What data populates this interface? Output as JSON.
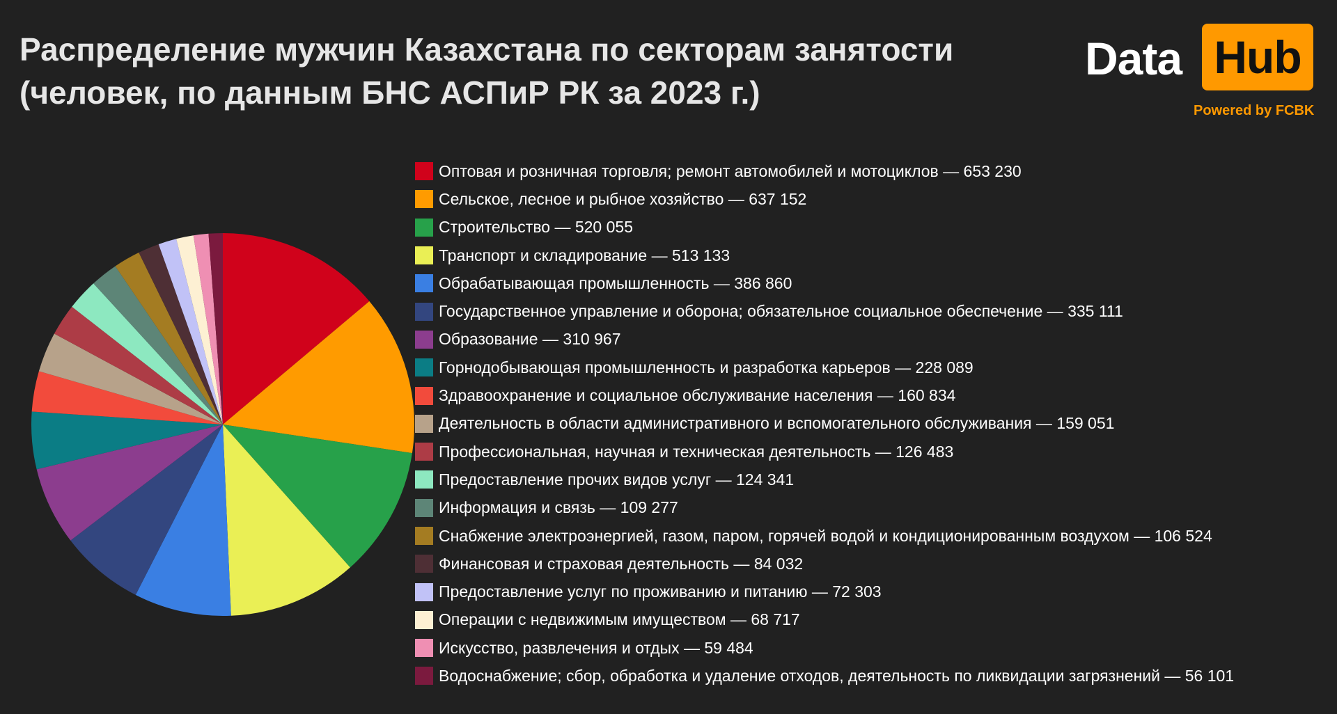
{
  "title": {
    "line1": "Распределение мужчин Казахстана по секторам занятости",
    "line2": "(человек, по данным БНС АСПиР РК за 2023 г.)"
  },
  "logo": {
    "word1": "Data",
    "word2": "Hub",
    "tagline": "Powered by FCBK",
    "accent": "#ff9900"
  },
  "chart_data": {
    "type": "pie",
    "title": "Распределение мужчин Казахстана по секторам занятости (человек, по данным БНС АСПиР РК за 2023 г.)",
    "legend_position": "right",
    "slices": [
      {
        "label": "Оптовая и розничная торговля; ремонт автомобилей и мотоциклов — 653 230",
        "value": 653230,
        "color": "#d0021b"
      },
      {
        "label": "Сельское, лесное и рыбное хозяйство — 637 152",
        "value": 637152,
        "color": "#ff9b00"
      },
      {
        "label": "Строительство — 520 055",
        "value": 520055,
        "color": "#27a14a"
      },
      {
        "label": "Транспорт и складирование — 513 133",
        "value": 513133,
        "color": "#eaef55"
      },
      {
        "label": "Обрабатывающая промышленность — 386 860",
        "value": 386860,
        "color": "#3a7fe3"
      },
      {
        "label": "Государственное управление и оборона; обязательное социальное обеспечение — 335 111",
        "value": 335111,
        "color": "#33467f"
      },
      {
        "label": "Образование — 310 967",
        "value": 310967,
        "color": "#8c3d8e"
      },
      {
        "label": "Горнодобывающая промышленность и разработка карьеров — 228 089",
        "value": 228089,
        "color": "#0b7d85"
      },
      {
        "label": "Здравоохранение и социальное обслуживание населения — 160 834",
        "value": 160834,
        "color": "#f24b3c"
      },
      {
        "label": "Деятельность в области административного и вспомогательного обслуживания — 159 051",
        "value": 159051,
        "color": "#b7a28a"
      },
      {
        "label": "Профессиональная, научная и техническая деятельность — 126 483",
        "value": 126483,
        "color": "#ad3c46"
      },
      {
        "label": "Предоставление прочих видов услуг — 124 341",
        "value": 124341,
        "color": "#8de8c0"
      },
      {
        "label": "Информация и связь — 109 277",
        "value": 109277,
        "color": "#5d8577"
      },
      {
        "label": "Снабжение электроэнергией, газом, паром, горячей водой и  кондиционированным воздухом — 106 524",
        "value": 106524,
        "color": "#a47c22"
      },
      {
        "label": "Финансовая и страховая деятельность — 84 032",
        "value": 84032,
        "color": "#4e2f35"
      },
      {
        "label": "Предоставление услуг по проживанию и питанию — 72 303",
        "value": 72303,
        "color": "#c1c2f7"
      },
      {
        "label": "Операции с недвижимым имуществом — 68 717",
        "value": 68717,
        "color": "#fdf0d3"
      },
      {
        "label": "Искусство, развлечения и отдых — 59 484",
        "value": 59484,
        "color": "#ef8fb3"
      },
      {
        "label": "Водоснабжение; сбор, обработка и удаление отходов, деятельность по ликвидации загрязнений — 56 101",
        "value": 56101,
        "color": "#7b1a3e"
      }
    ]
  }
}
